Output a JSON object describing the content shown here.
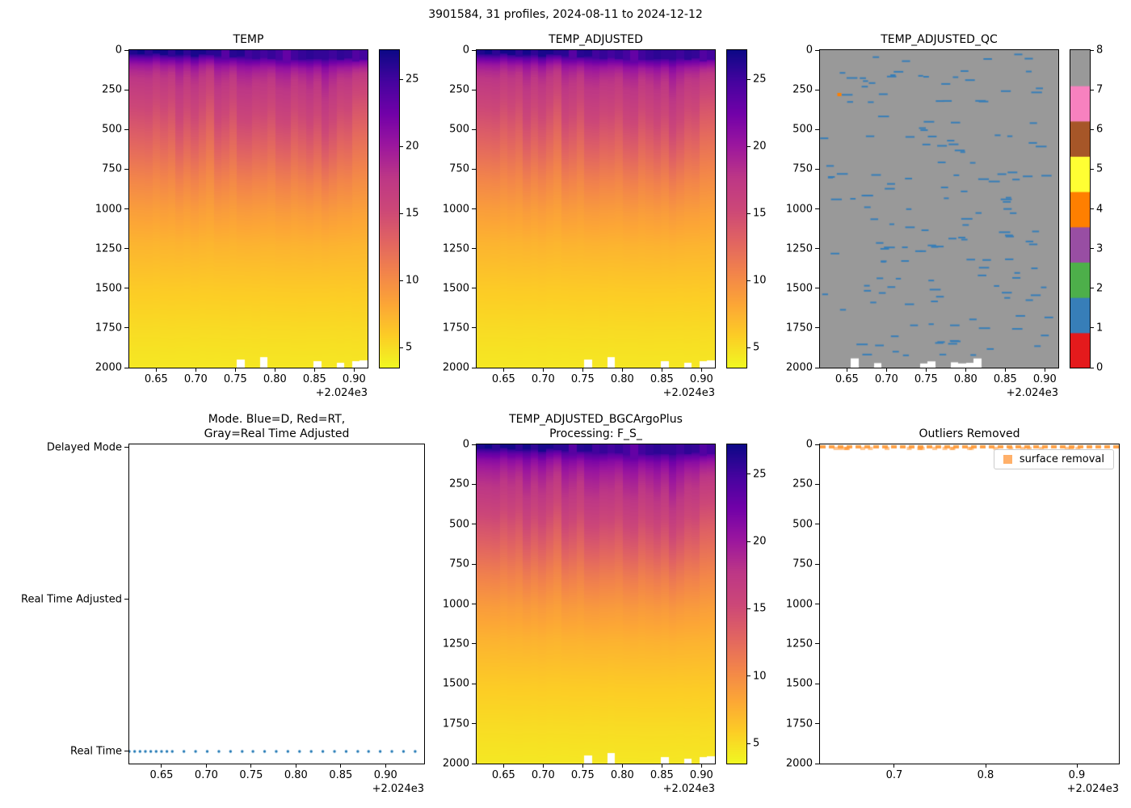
{
  "figure": {
    "suptitle": "3901584, 31 profiles, 2024-08-11 to 2024-12-12",
    "background_color": "#ffffff",
    "float_id": "3901584",
    "n_profiles": 31,
    "date_range": "2024-08-11 to 2024-12-12"
  },
  "chart_data": [
    {
      "id": "temp",
      "type": "heatmap",
      "title": "TEMP",
      "x_axis": {
        "tick_labels": [
          "0.65",
          "0.70",
          "0.75",
          "0.80",
          "0.85",
          "0.90"
        ],
        "tick_values": [
          2024.65,
          2024.7,
          2024.75,
          2024.8,
          2024.85,
          2024.9
        ],
        "offset_text": "+2.024e3",
        "lim": [
          2024.616,
          2024.917
        ]
      },
      "y_axis": {
        "tick_labels": [
          "0",
          "250",
          "500",
          "750",
          "1000",
          "1250",
          "1500",
          "1750",
          "2000"
        ],
        "tick_values": [
          0,
          250,
          500,
          750,
          1000,
          1250,
          1500,
          1750,
          2000
        ],
        "lim": [
          0,
          2000
        ],
        "note": "lim is top-to-bottom, depth in dbar"
      },
      "colorbar": {
        "tick_labels": [
          "5",
          "10",
          "15",
          "20",
          "25"
        ],
        "tick_values": [
          5,
          10,
          15,
          20,
          25
        ],
        "clim": [
          3.5,
          27.2
        ],
        "colormap": "plasma_r"
      },
      "n_profiles": 31,
      "mean_profile": {
        "depths_m": [
          0,
          40,
          80,
          120,
          160,
          220,
          300,
          400,
          500,
          650,
          800,
          1000,
          1200,
          1500,
          1750,
          2000
        ],
        "temps_c": [
          27.0,
          22.5,
          19.8,
          18.4,
          17.5,
          16.6,
          15.6,
          14.5,
          13.4,
          11.9,
          10.4,
          8.7,
          7.4,
          6.0,
          5.1,
          4.4
        ]
      }
    },
    {
      "id": "temp_adjusted",
      "type": "heatmap",
      "title": "TEMP_ADJUSTED",
      "x_axis": {
        "tick_labels": [
          "0.65",
          "0.70",
          "0.75",
          "0.80",
          "0.85",
          "0.90"
        ],
        "tick_values": [
          2024.65,
          2024.7,
          2024.75,
          2024.8,
          2024.85,
          2024.9
        ],
        "offset_text": "+2.024e3",
        "lim": [
          2024.616,
          2024.917
        ]
      },
      "y_axis": {
        "tick_labels": [
          "0",
          "250",
          "500",
          "750",
          "1000",
          "1250",
          "1500",
          "1750",
          "2000"
        ],
        "tick_values": [
          0,
          250,
          500,
          750,
          1000,
          1250,
          1500,
          1750,
          2000
        ],
        "lim": [
          0,
          2000
        ]
      },
      "colorbar": {
        "tick_labels": [
          "5",
          "10",
          "15",
          "20",
          "25"
        ],
        "tick_values": [
          5,
          10,
          15,
          20,
          25
        ],
        "clim": [
          3.5,
          27.2
        ],
        "colormap": "plasma_r"
      },
      "n_profiles": 31,
      "mean_profile": {
        "depths_m": [
          0,
          40,
          80,
          120,
          160,
          220,
          300,
          400,
          500,
          650,
          800,
          1000,
          1200,
          1500,
          1750,
          2000
        ],
        "temps_c": [
          27.0,
          22.5,
          19.8,
          18.4,
          17.5,
          16.6,
          15.6,
          14.5,
          13.4,
          11.9,
          10.4,
          8.7,
          7.4,
          6.0,
          5.1,
          4.4
        ]
      }
    },
    {
      "id": "temp_adjusted_qc",
      "type": "heatmap",
      "title": "TEMP_ADJUSTED_QC",
      "x_axis": {
        "tick_labels": [
          "0.65",
          "0.70",
          "0.75",
          "0.80",
          "0.85",
          "0.90"
        ],
        "tick_values": [
          2024.65,
          2024.7,
          2024.75,
          2024.8,
          2024.85,
          2024.9
        ],
        "offset_text": "+2.024e3",
        "lim": [
          2024.616,
          2024.917
        ]
      },
      "y_axis": {
        "tick_labels": [
          "0",
          "250",
          "500",
          "750",
          "1000",
          "1250",
          "1500",
          "1750",
          "2000"
        ],
        "tick_values": [
          0,
          250,
          500,
          750,
          1000,
          1250,
          1500,
          1750,
          2000
        ],
        "lim": [
          0,
          2000
        ]
      },
      "colorbar": {
        "tick_labels": [
          "0",
          "1",
          "2",
          "3",
          "4",
          "5",
          "6",
          "7",
          "8"
        ],
        "tick_values": [
          0,
          1,
          2,
          3,
          4,
          5,
          6,
          7,
          8
        ],
        "edge_lim": [
          0,
          8
        ],
        "colors_by_value": [
          "#e41a1c",
          "#377eb8",
          "#4daf4a",
          "#984ea3",
          "#ff7f00",
          "#ffff33",
          "#a65628",
          "#f781bf",
          "#999999"
        ]
      },
      "n_profiles": 31,
      "qc_field": {
        "background_value": 8,
        "background_color": "#999999",
        "scattered_dash_value": 1,
        "scattered_dash_color": "#377eb8",
        "n_scattered_dashes": 165,
        "isolated_point": {
          "value": 4,
          "color": "#ff7f00",
          "time": 2024.64,
          "depth_m": 280
        }
      }
    },
    {
      "id": "mode",
      "type": "scatter",
      "title": "Mode. Blue=D, Red=RT,\nGray=Real Time Adjusted",
      "x_axis": {
        "tick_labels": [
          "0.65",
          "0.70",
          "0.75",
          "0.80",
          "0.85",
          "0.90"
        ],
        "tick_values": [
          2024.65,
          2024.7,
          2024.75,
          2024.8,
          2024.85,
          2024.9
        ],
        "offset_text": "+2.024e3",
        "lim": [
          2024.614,
          2024.943
        ]
      },
      "y_axis": {
        "category_labels": [
          "Delayed Mode",
          "Real Time Adjusted",
          "Real Time"
        ],
        "category_values": [
          2,
          1,
          0
        ],
        "lim": [
          2.02,
          -0.08
        ]
      },
      "series": [
        {
          "name": "mode",
          "marker_color": "#1f77b4",
          "mode_for_all_profiles": "Real Time",
          "y_category_value": 0,
          "x": [
            2024.614,
            2024.62,
            2024.626,
            2024.632,
            2024.638,
            2024.644,
            2024.65,
            2024.656,
            2024.662,
            2024.675,
            2024.688,
            2024.701,
            2024.714,
            2024.727,
            2024.74,
            2024.752,
            2024.765,
            2024.778,
            2024.791,
            2024.804,
            2024.817,
            2024.83,
            2024.843,
            2024.856,
            2024.869,
            2024.881,
            2024.894,
            2024.907,
            2024.92,
            2024.933,
            2024.946
          ]
        }
      ]
    },
    {
      "id": "temp_adjusted_bgcargoplus",
      "type": "heatmap",
      "title": "TEMP_ADJUSTED_BGCArgoPlus\nProcessing: F_S_",
      "x_axis": {
        "tick_labels": [
          "0.65",
          "0.70",
          "0.75",
          "0.80",
          "0.85",
          "0.90"
        ],
        "tick_values": [
          2024.65,
          2024.7,
          2024.75,
          2024.8,
          2024.85,
          2024.9
        ],
        "offset_text": "+2.024e3",
        "lim": [
          2024.616,
          2024.917
        ]
      },
      "y_axis": {
        "tick_labels": [
          "0",
          "250",
          "500",
          "750",
          "1000",
          "1250",
          "1500",
          "1750",
          "2000"
        ],
        "tick_values": [
          0,
          250,
          500,
          750,
          1000,
          1250,
          1500,
          1750,
          2000
        ],
        "lim": [
          0,
          2000
        ]
      },
      "colorbar": {
        "tick_labels": [
          "5",
          "10",
          "15",
          "20",
          "25"
        ],
        "tick_values": [
          5,
          10,
          15,
          20,
          25
        ],
        "clim": [
          3.5,
          27.2
        ],
        "colormap": "plasma_r"
      },
      "n_profiles": 31,
      "mean_profile": {
        "depths_m": [
          0,
          40,
          80,
          120,
          160,
          220,
          300,
          400,
          500,
          650,
          800,
          1000,
          1200,
          1500,
          1750,
          2000
        ],
        "temps_c": [
          27.0,
          23.2,
          21.0,
          19.8,
          18.9,
          17.9,
          16.8,
          15.5,
          14.2,
          12.5,
          10.8,
          8.9,
          7.5,
          6.0,
          5.1,
          4.4
        ]
      }
    },
    {
      "id": "outliers_removed",
      "type": "scatter",
      "title": "Outliers Removed",
      "x_axis": {
        "tick_labels": [
          "0.7",
          "0.8",
          "0.9"
        ],
        "tick_values": [
          2024.7,
          2024.8,
          2024.9
        ],
        "offset_text": "+2.024e3",
        "lim": [
          2024.6186,
          2024.946
        ]
      },
      "y_axis": {
        "tick_labels": [
          "0",
          "250",
          "500",
          "750",
          "1000",
          "1250",
          "1500",
          "1750",
          "2000"
        ],
        "tick_values": [
          0,
          250,
          500,
          750,
          1000,
          1250,
          1500,
          1750,
          2000
        ],
        "lim": [
          0,
          2000
        ]
      },
      "legend": {
        "position": "upper right",
        "entries": [
          {
            "label": "surface removal",
            "marker_color": "#ffb06a"
          }
        ]
      },
      "series": [
        {
          "name": "surface removal",
          "marker_color": "#ff9632",
          "depth_m": 0,
          "time_range": [
            2024.614,
            2024.946
          ],
          "note": "dashed band of removed surface points at ~0 dbar across the whole record"
        }
      ]
    }
  ]
}
